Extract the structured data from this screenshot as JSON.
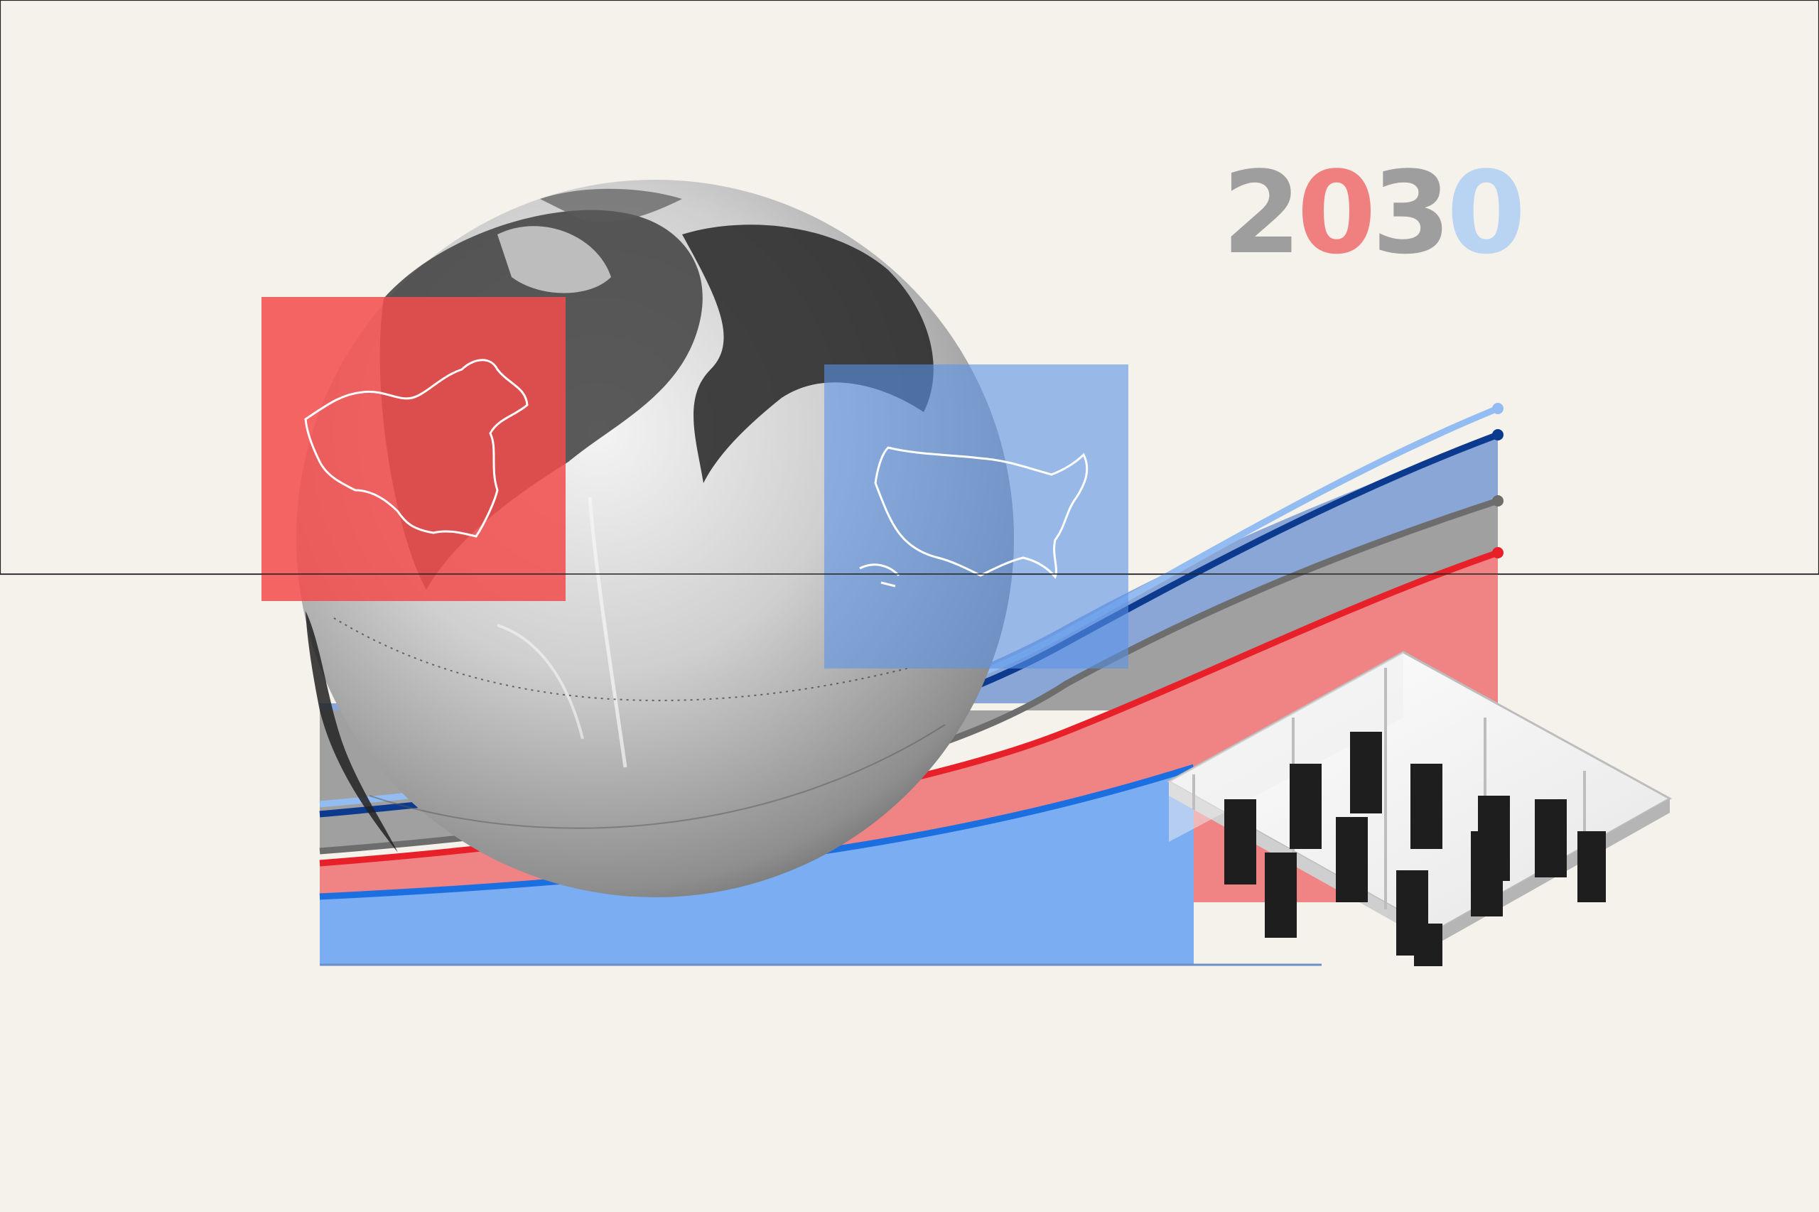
{
  "headline": {
    "digits": [
      {
        "char": "2",
        "color": "#9e9e9e"
      },
      {
        "char": "0",
        "color": "#f07f7f"
      },
      {
        "char": "3",
        "color": "#9e9e9e"
      },
      {
        "char": "0",
        "color": "#b9d3f3"
      }
    ]
  },
  "colors": {
    "background": "#f4f2ea",
    "china_panel": "#f24d4d",
    "us_panel": "#5a92e6",
    "light_blue_area": "#6ea6f2",
    "pink_area": "#f07d7d",
    "gray_area": "#9b9b9b",
    "navy_area": "#7f9ccb",
    "red_line": "#e8202a",
    "gray_line": "#6f6f6f",
    "navy_line": "#0b3a8f",
    "light_blue_line": "#8fbaf0",
    "blue_line": "#1b6fe0"
  },
  "icons": [
    "globe-illustration",
    "china-outline-icon",
    "usa-outline-icon",
    "data-center-icon"
  ]
}
